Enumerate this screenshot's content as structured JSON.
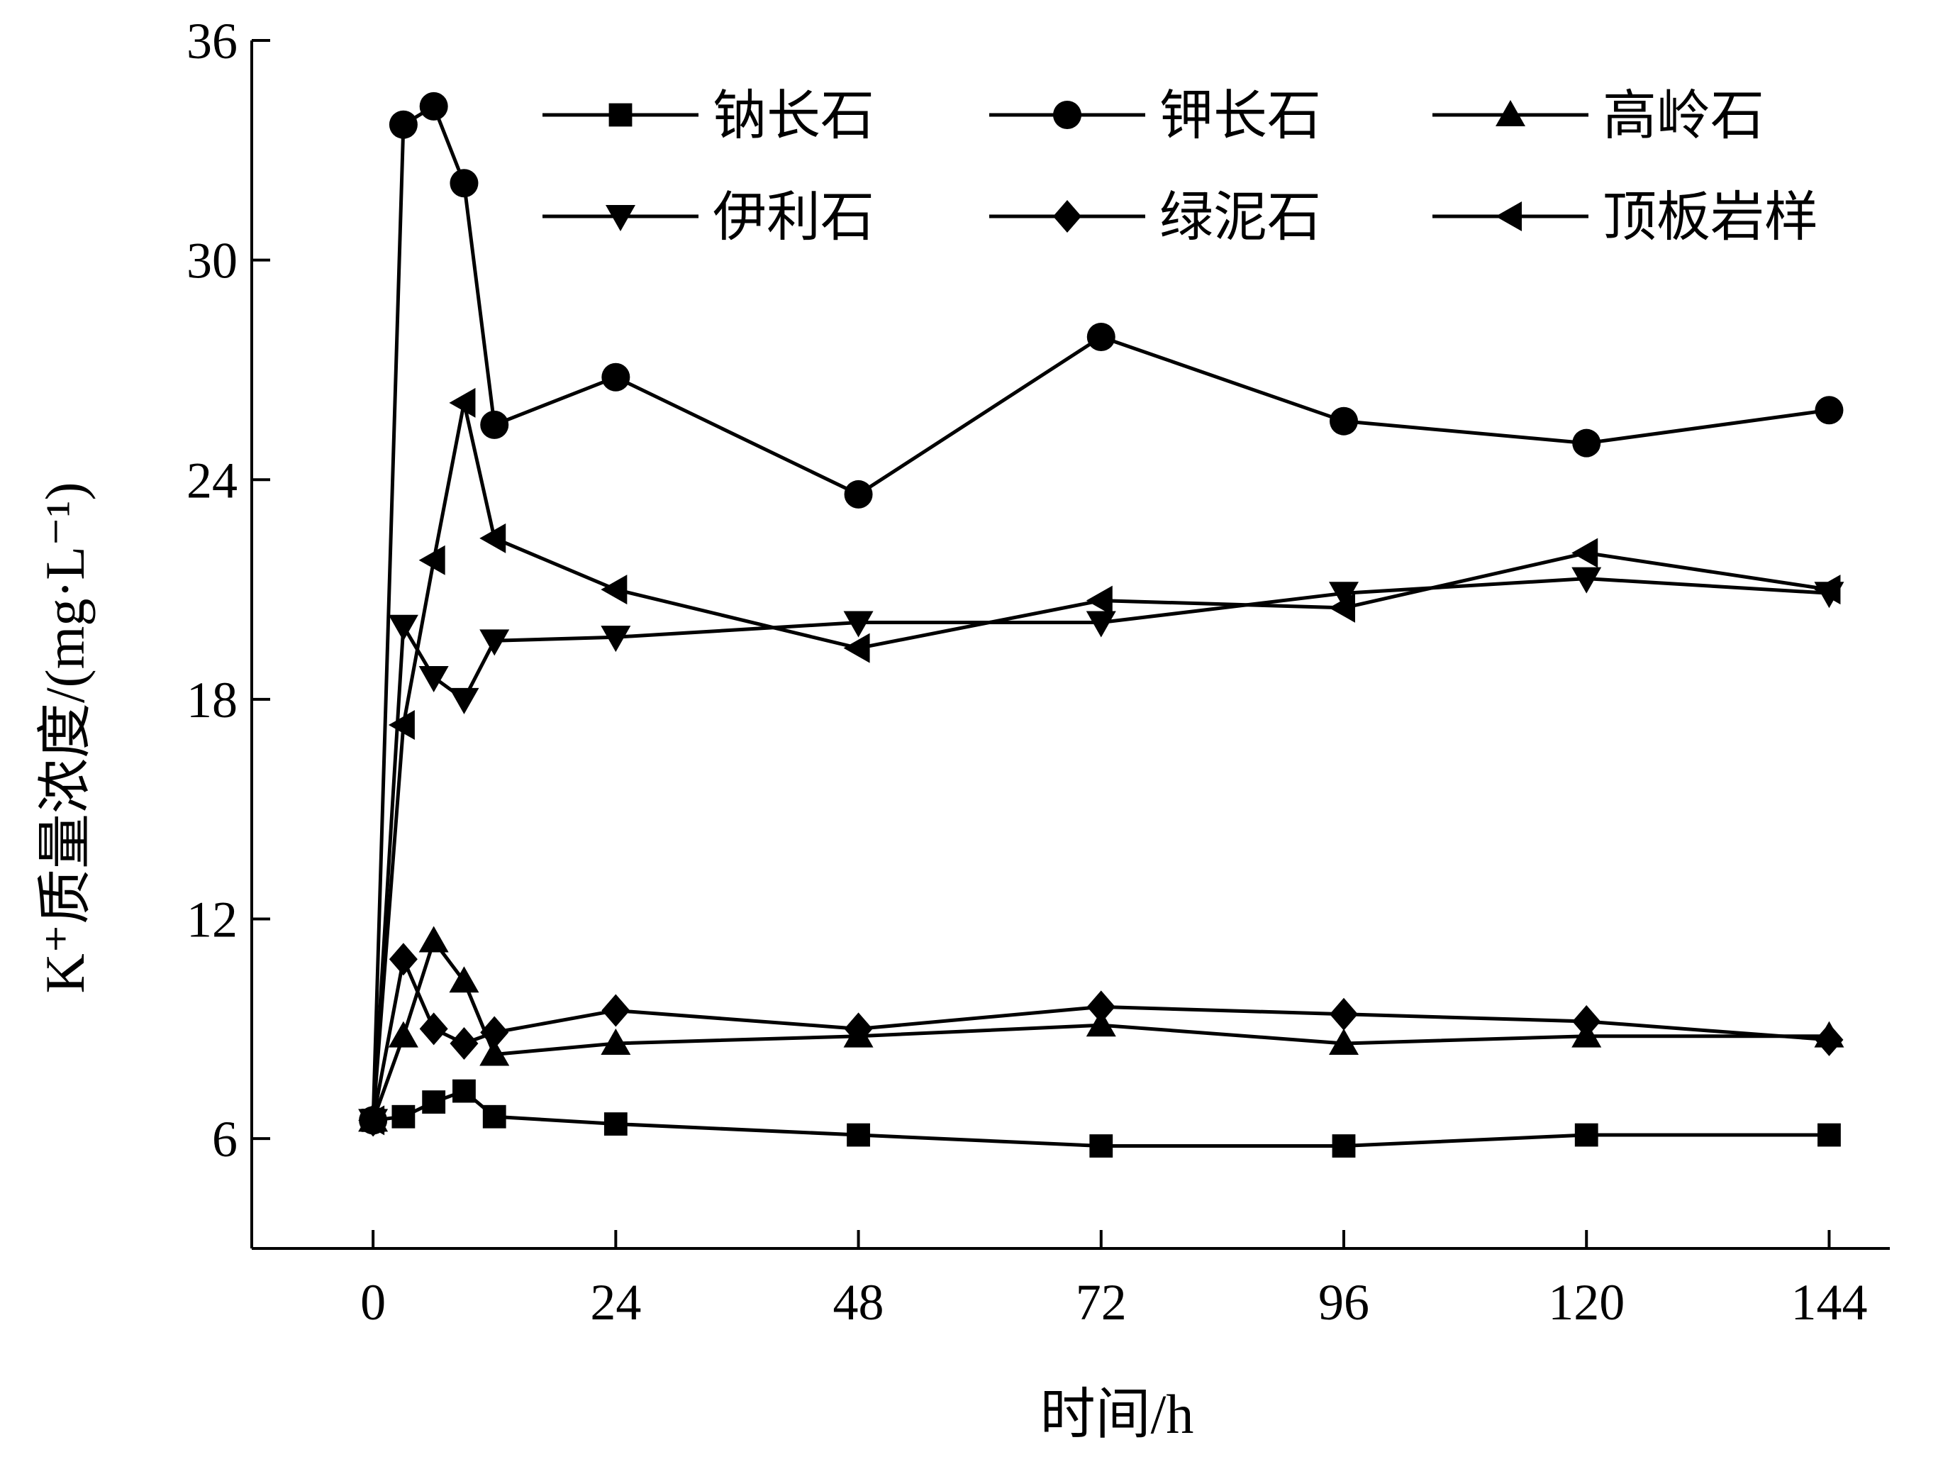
{
  "chart_data": {
    "type": "line",
    "xlabel": "时间/h",
    "ylabel": "K⁺质量浓度/(mg·L⁻¹)",
    "xlim": [
      -12,
      150
    ],
    "ylim": [
      3,
      36
    ],
    "xticks": [
      "0",
      "24",
      "48",
      "72",
      "96",
      "120",
      "144"
    ],
    "yticks": [
      "6",
      "12",
      "18",
      "24",
      "30",
      "36"
    ],
    "grid": false,
    "legend_position": "top-right",
    "x": [
      0,
      3,
      6,
      9,
      12,
      24,
      48,
      72,
      96,
      120,
      144
    ],
    "series": [
      {
        "name": "钠长石",
        "marker": "square",
        "values": [
          6.5,
          6.6,
          7.0,
          7.3,
          6.6,
          6.4,
          6.1,
          5.8,
          5.8,
          6.1,
          6.1
        ]
      },
      {
        "name": "钾长石",
        "marker": "circle",
        "values": [
          6.5,
          33.7,
          34.2,
          32.1,
          25.5,
          26.8,
          23.6,
          27.9,
          25.6,
          25.0,
          25.9
        ]
      },
      {
        "name": "高岭石",
        "marker": "triangle-up",
        "values": [
          6.5,
          8.8,
          11.4,
          10.3,
          8.3,
          8.6,
          8.8,
          9.1,
          8.6,
          8.8,
          8.8
        ]
      },
      {
        "name": "伊利石",
        "marker": "triangle-down",
        "values": [
          6.5,
          20.0,
          18.6,
          18.0,
          19.6,
          19.7,
          20.1,
          20.1,
          20.9,
          21.3,
          20.9
        ]
      },
      {
        "name": "绿泥石",
        "marker": "diamond",
        "values": [
          6.5,
          10.9,
          9.0,
          8.6,
          8.9,
          9.5,
          9.0,
          9.6,
          9.4,
          9.2,
          8.7
        ]
      },
      {
        "name": "顶板岩样",
        "marker": "triangle-left",
        "values": [
          6.5,
          17.3,
          21.8,
          26.1,
          22.4,
          21.0,
          19.4,
          20.7,
          20.5,
          22.0,
          21.0
        ]
      }
    ]
  }
}
